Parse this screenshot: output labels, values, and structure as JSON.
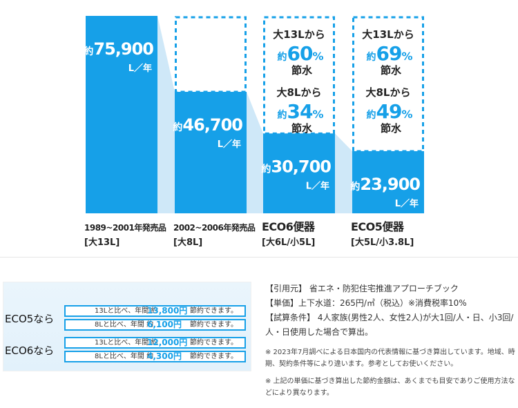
{
  "chart_data": {
    "type": "bar",
    "unit_label": "L／年",
    "categories": [
      {
        "name": "1989~2001年発売品",
        "spec": "[大13L]"
      },
      {
        "name": "2002~2006年発売品",
        "spec": "[大8L]"
      },
      {
        "name": "ECO6便器",
        "spec": "[大6L/小5L]"
      },
      {
        "name": "ECO5便器",
        "spec": "[大5L/小3.8L]"
      }
    ],
    "values": [
      75900,
      46700,
      30700,
      23900
    ],
    "value_labels": [
      "約75,900",
      "約46,700",
      "約30,700",
      "約23,900"
    ],
    "annotations": [
      {
        "bar": 2,
        "lines": [
          {
            "pre": "大13Lから",
            "approx": "約",
            "pct": "60%",
            "post": "節水"
          },
          {
            "pre": "大8Lから",
            "approx": "約",
            "pct": "34%",
            "post": "節水"
          }
        ]
      },
      {
        "bar": 3,
        "lines": [
          {
            "pre": "大13Lから",
            "approx": "約",
            "pct": "69%",
            "post": "節水"
          },
          {
            "pre": "大8Lから",
            "approx": "約",
            "pct": "49%",
            "post": "節水"
          }
        ]
      }
    ],
    "colors": {
      "bar": "#16a0e8",
      "connector": "#cfe8f8",
      "dash": "#16a0e8"
    }
  },
  "savings": {
    "groups": [
      {
        "label": "ECO5なら",
        "rows": [
          {
            "prefix": "13Lと比べ、年間 約",
            "amount": "13,800円",
            "suffix": "節約できます。"
          },
          {
            "prefix": "8Lと比べ、年間 約",
            "amount": "6,100円",
            "suffix": "節約できます。"
          }
        ]
      },
      {
        "label": "ECO6なら",
        "rows": [
          {
            "prefix": "13Lと比べ、年間 約",
            "amount": "12,000円",
            "suffix": "節約できます。"
          },
          {
            "prefix": "8Lと比べ、年間 約",
            "amount": "4,300円",
            "suffix": "節約できます。"
          }
        ]
      }
    ]
  },
  "notes": {
    "source": "【引用元】 省エネ・防犯住宅推進アプローチブック",
    "unit": "【単価】上下水道：265円/㎥（税込）※消費税率10%",
    "conditions": "【試算条件】 4人家族(男性2人、女性2人)が大1回/人・日、小3回/人・日使用した場合で算出。",
    "note1": "※ 2023年7月調べによる日本国内の代表情報に基づき算出しています。地域、時期、契約条件等により違います。参考としてお使いください。",
    "note2": "※ 上記の単価に基づき算出した節約金額は、あくまでも目安でありご使用方法などにより異なります。"
  }
}
